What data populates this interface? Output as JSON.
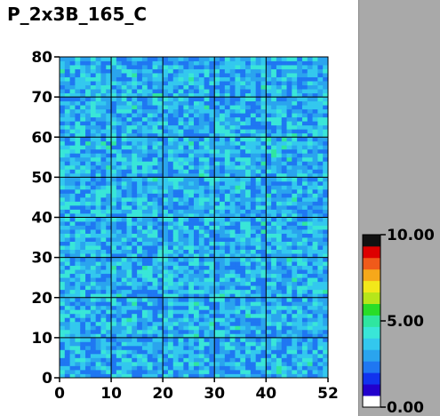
{
  "chart_data": {
    "type": "heatmap",
    "title": "P_2x3B_165_C",
    "x_ticks": [
      "0",
      "10",
      "20",
      "30",
      "40",
      "52"
    ],
    "x_tick_values": [
      0,
      10,
      20,
      30,
      40,
      52
    ],
    "y_ticks": [
      "0",
      "10",
      "20",
      "30",
      "40",
      "50",
      "60",
      "70",
      "80"
    ],
    "y_tick_values": [
      0,
      10,
      20,
      30,
      40,
      50,
      60,
      70,
      80
    ],
    "xlim": [
      0,
      52
    ],
    "ylim": [
      0,
      80
    ],
    "grid": true,
    "colorbar": {
      "min": 0,
      "max": 10,
      "tick_labels": [
        "0.00",
        "5.00",
        "10.00"
      ],
      "tick_values": [
        0,
        5,
        10
      ],
      "placement": "right"
    },
    "cell_value_typical_range": [
      2.0,
      4.5
    ],
    "palette": [
      "#ffffff",
      "#2200cc",
      "#1133ee",
      "#1f77f2",
      "#2aa4ee",
      "#33c8ee",
      "#39e6d8",
      "#2fe6a0",
      "#28dd28",
      "#b6e61a",
      "#f2e81a",
      "#f6a81a",
      "#f05a1a",
      "#dd0000",
      "#111111"
    ]
  }
}
